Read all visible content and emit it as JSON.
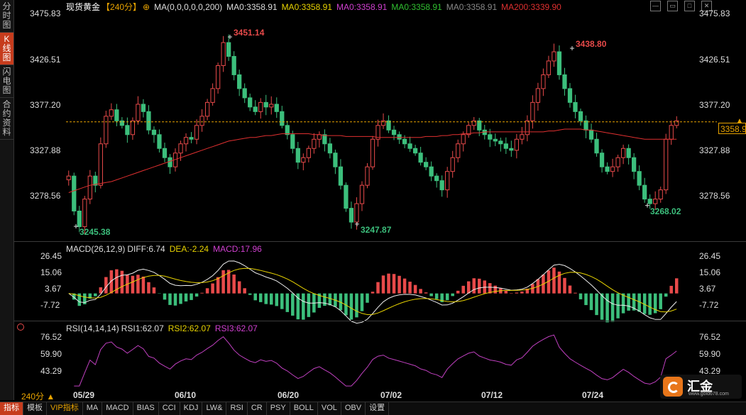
{
  "sidebar": {
    "tabs": [
      {
        "label": "分时图",
        "active": false
      },
      {
        "label": "K线图",
        "active": true
      },
      {
        "label": "闪电图",
        "active": false
      },
      {
        "label": "合约资料",
        "active": false
      }
    ]
  },
  "header": {
    "title": "现货黄金",
    "period_tag": "【240分】",
    "ma_params": "MA(0,0,0,0,0,200)",
    "ma_values": [
      {
        "text": "MA0:3358.91",
        "color": "#dddddd"
      },
      {
        "text": "MA0:3358.91",
        "color": "#e8d300"
      },
      {
        "text": "MA0:3358.91",
        "color": "#d040d0"
      },
      {
        "text": "MA0:3358.91",
        "color": "#30c030"
      },
      {
        "text": "MA0:3358.91",
        "color": "#888888"
      },
      {
        "text": "MA200:3339.90",
        "color": "#e03030"
      }
    ]
  },
  "window_buttons": [
    "minimize-icon",
    "restore-icon",
    "maximize-icon",
    "close-icon"
  ],
  "price_axis": {
    "ticks": [
      "3475.83",
      "3426.51",
      "3377.20",
      "3327.88",
      "3278.56"
    ],
    "current": "3358.91"
  },
  "annotations": {
    "high1": "3451.14",
    "high2": "3438.80",
    "low1": "3245.38",
    "low2": "3247.87",
    "low3": "3268.02"
  },
  "macd": {
    "title": "MACD(26,12,9)",
    "diff": "DIFF:6.74",
    "dea": "DEA:-2.24",
    "macd": "MACD:17.96",
    "ticks": [
      "26.45",
      "15.06",
      "3.67",
      "-7.72"
    ]
  },
  "rsi": {
    "title": "RSI(14,14,14)",
    "rsi1": "RSI1:62.07",
    "rsi2": "RSI2:62.07",
    "rsi3": "RSI3:62.07",
    "ticks": [
      "76.52",
      "59.90",
      "43.29"
    ]
  },
  "x_axis": {
    "period": "240分 ▲",
    "dates": [
      "05/29",
      "06/10",
      "06/20",
      "07/02",
      "07/12",
      "07/24"
    ]
  },
  "bottom_tabs": [
    "指标",
    "模板",
    "VIP指标",
    "MA",
    "MACD",
    "BIAS",
    "CCI",
    "KDJ",
    "LW&",
    "RSI",
    "CR",
    "PSY",
    "BOLL",
    "VOL",
    "OBV",
    "设置"
  ],
  "logo": {
    "name": "汇金",
    "url": "www.gold678.com"
  },
  "colors": {
    "up": "#e84a4a",
    "down": "#3cbf7c",
    "accent": "#e8a300",
    "ma200": "#e03030",
    "rsi": "#c040c0"
  },
  "chart_data": [
    {
      "type": "candlestick",
      "title": "现货黄金",
      "ylim": [
        3245.38,
        3475.83
      ],
      "x_labels": [
        "05/29",
        "06/10",
        "06/20",
        "07/02",
        "07/12",
        "07/24"
      ],
      "close_path": [
        3300,
        3262,
        3245,
        3275,
        3300,
        3290,
        3335,
        3365,
        3372,
        3360,
        3355,
        3345,
        3360,
        3378,
        3370,
        3350,
        3345,
        3330,
        3320,
        3310,
        3325,
        3335,
        3342,
        3340,
        3355,
        3365,
        3380,
        3395,
        3420,
        3445,
        3430,
        3410,
        3395,
        3385,
        3375,
        3370,
        3380,
        3375,
        3378,
        3370,
        3355,
        3345,
        3330,
        3315,
        3320,
        3330,
        3340,
        3345,
        3335,
        3325,
        3310,
        3290,
        3265,
        3250,
        3270,
        3290,
        3310,
        3340,
        3355,
        3360,
        3350,
        3345,
        3340,
        3335,
        3330,
        3325,
        3315,
        3310,
        3300,
        3295,
        3285,
        3305,
        3320,
        3335,
        3345,
        3355,
        3360,
        3350,
        3345,
        3340,
        3338,
        3335,
        3330,
        3328,
        3340,
        3345,
        3360,
        3380,
        3395,
        3410,
        3425,
        3435,
        3410,
        3395,
        3380,
        3370,
        3360,
        3350,
        3340,
        3325,
        3310,
        3305,
        3310,
        3320,
        3330,
        3320,
        3305,
        3290,
        3275,
        3270,
        3275,
        3285,
        3340,
        3355,
        3360
      ],
      "ma200": [
        3282,
        3284,
        3286,
        3288,
        3290,
        3291,
        3292,
        3293,
        3294,
        3296,
        3298,
        3300,
        3302,
        3304,
        3306,
        3308,
        3310,
        3312,
        3314,
        3316,
        3318,
        3320,
        3322,
        3324,
        3326,
        3328,
        3330,
        3332,
        3334,
        3336,
        3338,
        3339,
        3340,
        3341,
        3342,
        3342,
        3343,
        3344,
        3344,
        3345,
        3346,
        3346,
        3346,
        3346,
        3346,
        3346,
        3345,
        3345,
        3344,
        3344,
        3344,
        3344,
        3343,
        3343,
        3343,
        3343,
        3343,
        3343,
        3342,
        3342,
        3342,
        3342,
        3342,
        3342,
        3342,
        3342,
        3342,
        3343,
        3343,
        3343,
        3344,
        3344,
        3345,
        3345,
        3346,
        3346,
        3347,
        3347,
        3348,
        3348,
        3348,
        3348,
        3348,
        3348,
        3348,
        3348,
        3348,
        3348,
        3348,
        3348,
        3349,
        3349,
        3350,
        3351,
        3351,
        3351,
        3351,
        3350,
        3350,
        3349,
        3348,
        3347,
        3346,
        3345,
        3344,
        3343,
        3342,
        3341,
        3340,
        3340,
        3340,
        3340,
        3340,
        3340,
        3340
      ],
      "last": 3358.91,
      "ma200_last": 3339.9
    },
    {
      "type": "bar+line",
      "title": "MACD(26,12,9)",
      "ylim": [
        -12,
        30
      ],
      "diff_last": 6.74,
      "dea_last": -2.24,
      "macd_last": 17.96
    },
    {
      "type": "line",
      "title": "RSI(14,14,14)",
      "ylim": [
        30,
        80
      ],
      "rsi_last": 62.07
    }
  ]
}
